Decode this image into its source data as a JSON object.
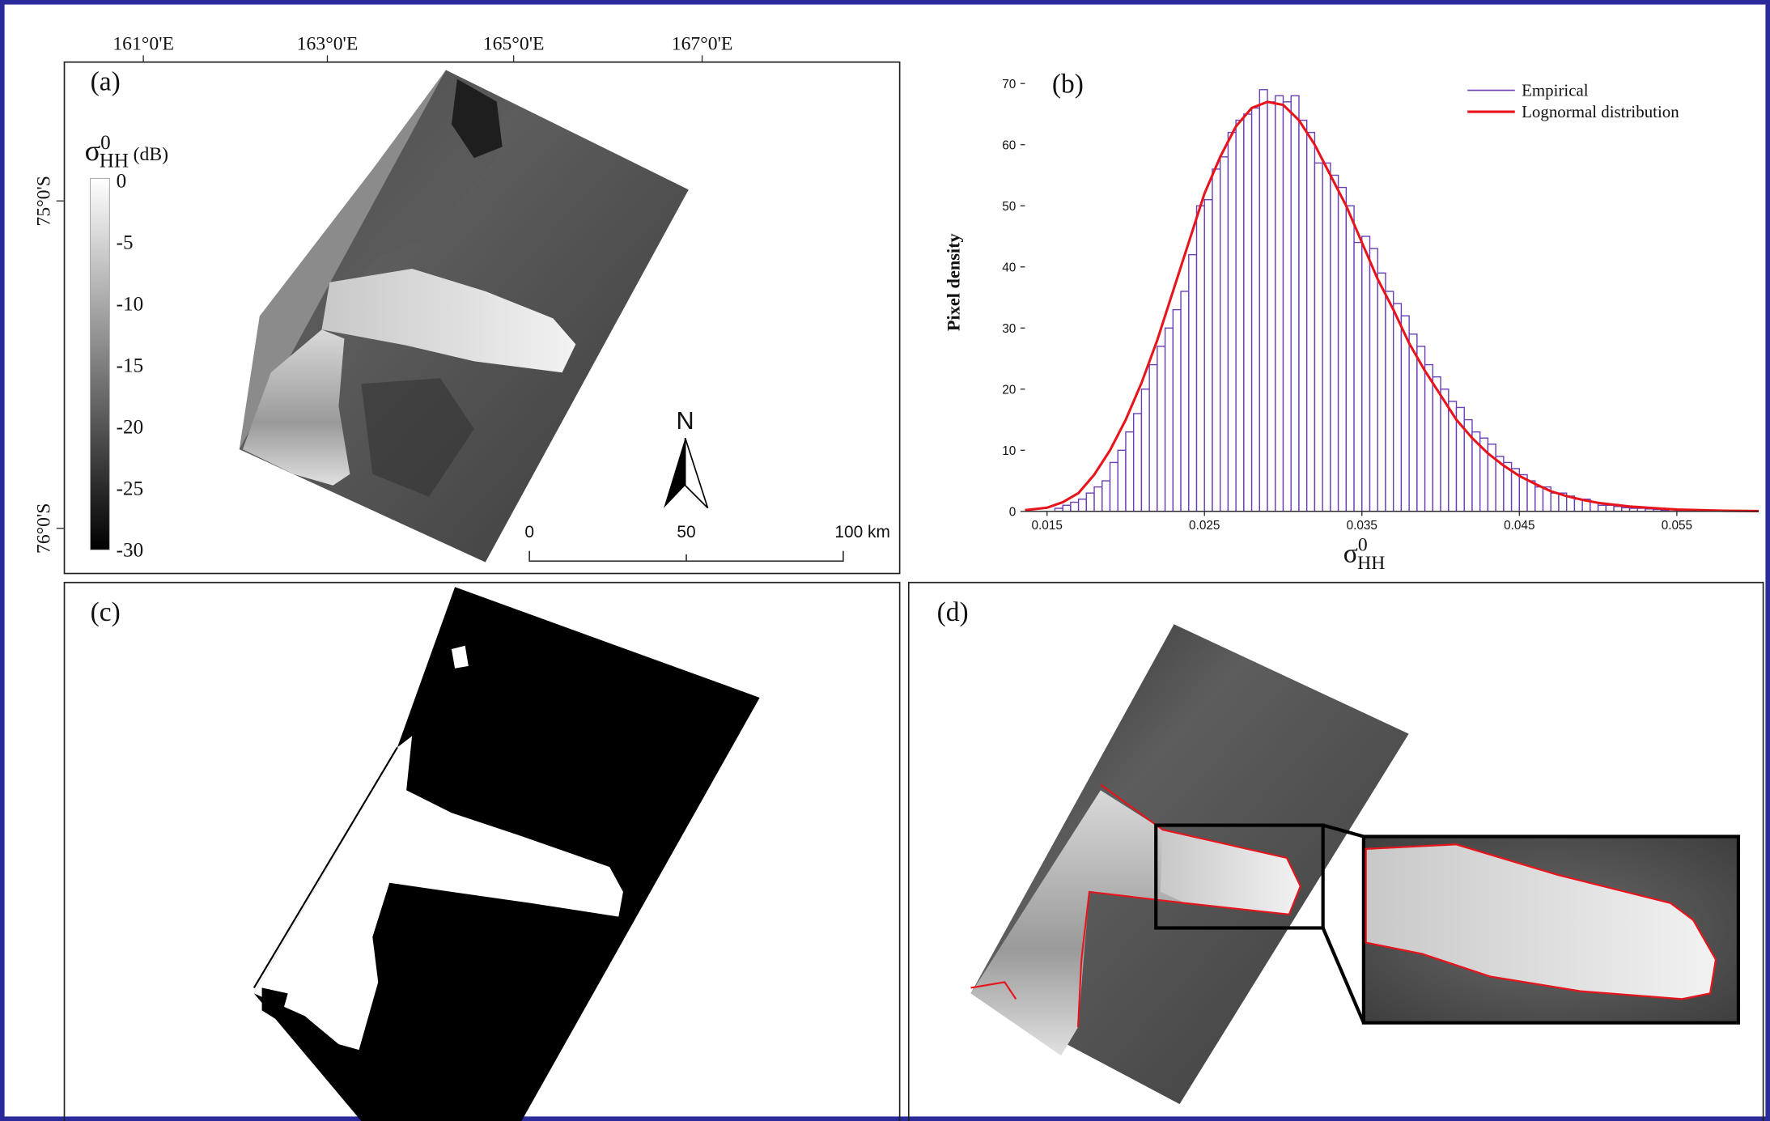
{
  "panels": {
    "a": {
      "label": "(a)",
      "longitudes": [
        "161°0'E",
        "163°0'E",
        "165°0'E",
        "167°0'E"
      ],
      "latitudes": [
        "75°0'S",
        "76°0'S"
      ],
      "colorbar": {
        "symbol": "σ",
        "superscript": "0",
        "subscript": "HH",
        "unit": "(dB)",
        "ticks": [
          0,
          -5,
          -10,
          -15,
          -20,
          -25,
          -30
        ]
      },
      "north": "N",
      "scale_bar": [
        0,
        50,
        "100 km"
      ]
    },
    "c": {
      "label": "(c)"
    },
    "d": {
      "label": "(d)"
    }
  },
  "chart_data": {
    "type": "histogram",
    "label": "(b)",
    "ylabel": "Pixel density",
    "xlabel": {
      "symbol": "σ",
      "superscript": "0",
      "subscript": "HH"
    },
    "legend": "upper right",
    "xlim": [
      0.0136,
      0.0602
    ],
    "ylim": [
      0,
      72
    ],
    "xticks": [
      0.015,
      0.025,
      0.035,
      0.045,
      0.055
    ],
    "yticks": [
      0,
      10,
      20,
      30,
      40,
      50,
      60,
      70
    ],
    "bins": [
      0.0155,
      0.016,
      0.0165,
      0.017,
      0.0175,
      0.018,
      0.0185,
      0.019,
      0.0195,
      0.02,
      0.0205,
      0.021,
      0.0215,
      0.022,
      0.0225,
      0.023,
      0.0235,
      0.024,
      0.0245,
      0.025,
      0.0255,
      0.026,
      0.0265,
      0.027,
      0.0275,
      0.028,
      0.0285,
      0.029,
      0.0295,
      0.03,
      0.0305,
      0.031,
      0.0315,
      0.032,
      0.0325,
      0.033,
      0.0335,
      0.034,
      0.0345,
      0.035,
      0.0355,
      0.036,
      0.0365,
      0.037,
      0.0375,
      0.038,
      0.0385,
      0.039,
      0.0395,
      0.04,
      0.0405,
      0.041,
      0.0415,
      0.042,
      0.0425,
      0.043,
      0.0435,
      0.044,
      0.0445,
      0.045,
      0.0455,
      0.046,
      0.0465,
      0.047,
      0.0475,
      0.048,
      0.0485,
      0.049,
      0.0495,
      0.05,
      0.0505,
      0.051,
      0.0515,
      0.052,
      0.0525,
      0.053,
      0.0535,
      0.054,
      0.0545
    ],
    "series": [
      {
        "name": "Empirical",
        "color": "#6a3fb5",
        "values": [
          0.5,
          1,
          1.5,
          2,
          3,
          4,
          5,
          8,
          10,
          13,
          16,
          20,
          24,
          27,
          30,
          33,
          36,
          42,
          50,
          51,
          56,
          58,
          62,
          64,
          65,
          66,
          69,
          67,
          68,
          67,
          68,
          64,
          62,
          57,
          57,
          55,
          53,
          50,
          44,
          45,
          43,
          39,
          36,
          34,
          32,
          29,
          27,
          24,
          22,
          20,
          18,
          17,
          15,
          13,
          12,
          11,
          9,
          8,
          7,
          6,
          5,
          4,
          4,
          3,
          3,
          2.5,
          2,
          2,
          1.5,
          1,
          1,
          0.8,
          0.6,
          0.5,
          0.5,
          0.4,
          0.3,
          0.2
        ]
      },
      {
        "name": "Lognormal distribution",
        "color": "#e8141b",
        "type": "line",
        "x": [
          0.0136,
          0.015,
          0.016,
          0.017,
          0.018,
          0.019,
          0.02,
          0.021,
          0.022,
          0.023,
          0.024,
          0.025,
          0.026,
          0.027,
          0.028,
          0.029,
          0.03,
          0.031,
          0.032,
          0.033,
          0.034,
          0.035,
          0.036,
          0.037,
          0.038,
          0.039,
          0.04,
          0.041,
          0.042,
          0.043,
          0.044,
          0.045,
          0.046,
          0.047,
          0.048,
          0.049,
          0.05,
          0.052,
          0.055,
          0.058,
          0.0602
        ],
        "values": [
          0.2,
          0.6,
          1.5,
          3,
          6,
          10,
          15,
          21,
          28,
          36,
          44,
          52,
          58,
          63,
          66,
          67,
          66.5,
          64,
          60,
          55,
          50,
          44,
          38,
          33,
          27.5,
          23,
          19,
          15,
          12,
          9.5,
          7.5,
          5.8,
          4.5,
          3.3,
          2.5,
          1.9,
          1.4,
          0.8,
          0.3,
          0.1,
          0.05
        ]
      }
    ]
  }
}
